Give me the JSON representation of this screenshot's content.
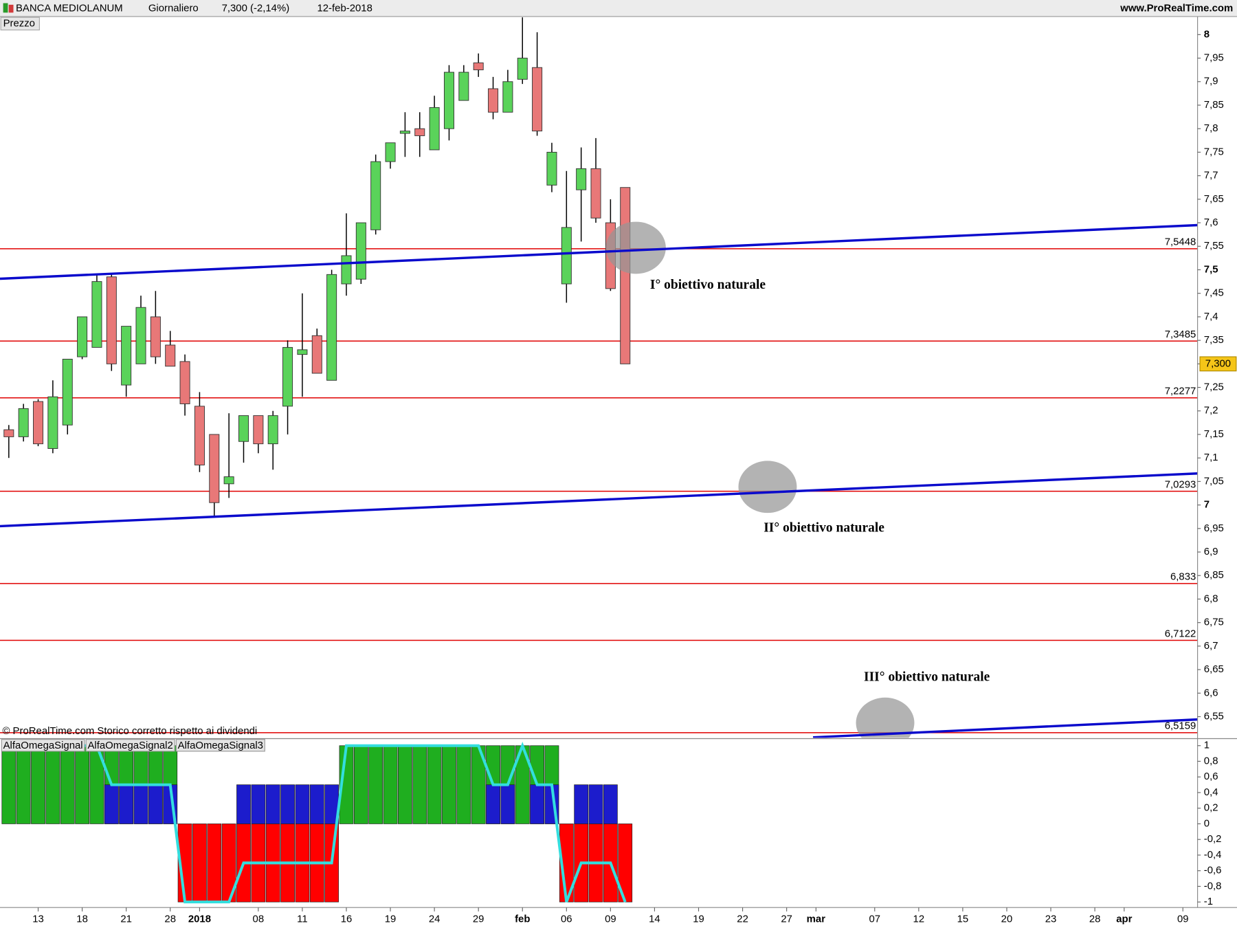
{
  "header": {
    "title": "BANCA MEDIOLANUM",
    "period": "Giornaliero",
    "quote": "7,300 (-2,14%)",
    "date": "12-feb-2018",
    "site": "www.ProRealTime.com",
    "copyright": "© ProRealTime.com  Storico corretto rispetto ai dividendi"
  },
  "chart_data": [
    {
      "type": "candlestick",
      "label": "Prezzo",
      "open": [
        7.16,
        7.145,
        7.22,
        7.12,
        7.17,
        7.315,
        7.335,
        7.485,
        7.255,
        7.3,
        7.4,
        7.34,
        7.305,
        7.21,
        7.15,
        7.045,
        7.135,
        7.19,
        7.13,
        7.21,
        7.32,
        7.36,
        7.265,
        7.47,
        7.48,
        7.585,
        7.73,
        7.79,
        7.8,
        7.755,
        7.8,
        7.86,
        7.94,
        7.885,
        7.835,
        7.905,
        7.93,
        7.68,
        7.47,
        7.67,
        7.715,
        7.6,
        7.675
      ],
      "high": [
        7.17,
        7.215,
        7.225,
        7.265,
        7.31,
        7.4,
        7.49,
        7.49,
        7.38,
        7.445,
        7.455,
        7.37,
        7.32,
        7.24,
        7.15,
        7.195,
        7.19,
        7.19,
        7.2,
        7.35,
        7.45,
        7.375,
        7.5,
        7.62,
        7.6,
        7.745,
        7.77,
        7.835,
        7.835,
        7.87,
        7.935,
        7.935,
        7.96,
        7.91,
        7.925,
        8.04,
        8.005,
        7.77,
        7.71,
        7.76,
        7.78,
        7.65,
        7.675
      ],
      "low": [
        7.1,
        7.135,
        7.125,
        7.11,
        7.15,
        7.31,
        7.335,
        7.285,
        7.23,
        7.3,
        7.3,
        7.295,
        7.19,
        7.07,
        6.975,
        7.015,
        7.09,
        7.11,
        7.075,
        7.15,
        7.23,
        7.28,
        7.265,
        7.445,
        7.47,
        7.575,
        7.715,
        7.74,
        7.74,
        7.755,
        7.775,
        7.86,
        7.91,
        7.82,
        7.835,
        7.895,
        7.785,
        7.665,
        7.43,
        7.56,
        7.6,
        7.455,
        7.3
      ],
      "close": [
        7.145,
        7.205,
        7.13,
        7.23,
        7.31,
        7.4,
        7.475,
        7.3,
        7.38,
        7.42,
        7.315,
        7.295,
        7.215,
        7.085,
        7.005,
        7.06,
        7.19,
        7.13,
        7.19,
        7.335,
        7.33,
        7.28,
        7.49,
        7.53,
        7.6,
        7.73,
        7.77,
        7.795,
        7.785,
        7.845,
        7.92,
        7.92,
        7.925,
        7.835,
        7.9,
        7.95,
        7.795,
        7.75,
        7.59,
        7.715,
        7.61,
        7.46,
        7.3
      ],
      "up_color": "#5ad35a",
      "down_color": "#e87878",
      "xlim": [
        -0.6,
        81
      ],
      "ylim": [
        6.505,
        8.04
      ],
      "yticks": [
        {
          "value": 6.55,
          "label": "6,55"
        },
        {
          "value": 6.6,
          "label": "6,6"
        },
        {
          "value": 6.65,
          "label": "6,65"
        },
        {
          "value": 6.7,
          "label": "6,7"
        },
        {
          "value": 6.75,
          "label": "6,75"
        },
        {
          "value": 6.8,
          "label": "6,8"
        },
        {
          "value": 6.85,
          "label": "6,85"
        },
        {
          "value": 6.9,
          "label": "6,9"
        },
        {
          "value": 6.95,
          "label": "6,95"
        },
        7,
        {
          "value": 7.05,
          "label": "7,05"
        },
        {
          "value": 7.1,
          "label": "7,1"
        },
        {
          "value": 7.15,
          "label": "7,15"
        },
        {
          "value": 7.2,
          "label": "7,2"
        },
        {
          "value": 7.25,
          "label": "7,25"
        },
        {
          "value": 7.3,
          "label": "7,3"
        },
        {
          "value": 7.35,
          "label": "7,35"
        },
        {
          "value": 7.4,
          "label": "7,4"
        },
        {
          "value": 7.45,
          "label": "7,45"
        },
        {
          "value": 7.5,
          "label": "7,5"
        },
        {
          "value": 7.55,
          "label": "7,55"
        },
        {
          "value": 7.6,
          "label": "7,6"
        },
        {
          "value": 7.65,
          "label": "7,65"
        },
        {
          "value": 7.7,
          "label": "7,7"
        },
        {
          "value": 7.75,
          "label": "7,75"
        },
        {
          "value": 7.8,
          "label": "7,8"
        },
        {
          "value": 7.85,
          "label": "7,85"
        },
        {
          "value": 7.9,
          "label": "7,9"
        },
        {
          "value": 7.95,
          "label": "7,95"
        },
        8
      ],
      "hlines": {
        "color": "#e00000",
        "levels": [
          {
            "value": 7.5448,
            "label": "7,5448"
          },
          {
            "value": 7.3485,
            "label": "7,3485"
          },
          {
            "value": 7.2277,
            "label": "7,2277"
          },
          {
            "value": 7.0293,
            "label": "7,0293"
          },
          {
            "value": 6.833,
            "label": "6,833"
          },
          {
            "value": 6.7122,
            "label": "6,7122"
          },
          {
            "value": 6.5159,
            "label": "6,5159"
          }
        ]
      },
      "trendlines": {
        "color": "#0a0acc",
        "lines": [
          [
            [
              -0.6,
              7.481
            ],
            [
              81,
              7.595
            ]
          ],
          [
            [
              -0.6,
              6.955
            ],
            [
              81,
              7.067
            ]
          ],
          [
            [
              54.8,
              6.506
            ],
            [
              81,
              6.544
            ]
          ]
        ]
      },
      "annotations": [
        "I° obiettivo naturale",
        "II° obiettivo naturale",
        "III° obiettivo naturale"
      ],
      "last_price": {
        "value": 7.3,
        "label": "7,300"
      }
    },
    {
      "type": "signal",
      "xlim": [
        -0.6,
        81
      ],
      "ylim": [
        -1.05,
        1.08
      ],
      "yticks": [
        1,
        {
          "value": 0.8,
          "label": "0,8"
        },
        {
          "value": 0.6,
          "label": "0,6"
        },
        {
          "value": 0.4,
          "label": "0,4"
        },
        {
          "value": 0.2,
          "label": "0,2"
        },
        0,
        {
          "value": -0.2,
          "label": "-0,2"
        },
        {
          "value": -0.4,
          "label": "-0,4"
        },
        {
          "value": -0.6,
          "label": "-0,6"
        },
        {
          "value": -0.8,
          "label": "-0,8"
        },
        -1
      ],
      "xticks": [
        {
          "value": 2,
          "label": "13"
        },
        {
          "value": 5,
          "label": "18"
        },
        {
          "value": 8,
          "label": "21"
        },
        {
          "value": 11,
          "label": "28"
        },
        {
          "value": 13,
          "label": "2018"
        },
        {
          "value": 17,
          "label": "08"
        },
        {
          "value": 20,
          "label": "11"
        },
        {
          "value": 23,
          "label": "16"
        },
        {
          "value": 26,
          "label": "19"
        },
        {
          "value": 29,
          "label": "24"
        },
        {
          "value": 32,
          "label": "29"
        },
        {
          "value": 35,
          "label": "feb"
        },
        {
          "value": 38,
          "label": "06"
        },
        {
          "value": 41,
          "label": "09"
        },
        {
          "value": 44,
          "label": "14"
        },
        {
          "value": 47,
          "label": "19"
        },
        {
          "value": 50,
          "label": "22"
        },
        {
          "value": 53,
          "label": "27"
        },
        {
          "value": 55,
          "label": "mar"
        },
        {
          "value": 59,
          "label": "07"
        },
        {
          "value": 62,
          "label": "12"
        },
        {
          "value": 65,
          "label": "15"
        },
        {
          "value": 68,
          "label": "20"
        },
        {
          "value": 71,
          "label": "23"
        },
        {
          "value": 74,
          "label": "28"
        },
        {
          "value": 76,
          "label": "apr"
        },
        {
          "value": 80,
          "label": "09"
        }
      ],
      "series": [
        {
          "name": "AlfaOmegaSignal",
          "style": "bars",
          "color": "#ff0000",
          "positive_color": "#1fae1f",
          "values": [
            1,
            1,
            1,
            1,
            1,
            1,
            1,
            1,
            1,
            1,
            1,
            1,
            -1,
            -1,
            -1,
            -1,
            -1,
            -1,
            -1,
            -1,
            -1,
            -1,
            -1,
            1,
            1,
            1,
            1,
            1,
            1,
            1,
            1,
            1,
            1,
            1,
            1,
            1,
            1,
            1,
            -1,
            -1,
            -1,
            -1,
            -1
          ]
        },
        {
          "name": "AlfaOmegaSignal2",
          "style": "bars",
          "color": "#1c1ccc",
          "values": [
            null,
            null,
            null,
            null,
            null,
            null,
            null,
            0.5,
            0.5,
            0.5,
            0.5,
            0.5,
            null,
            null,
            null,
            null,
            0.5,
            0.5,
            0.5,
            0.5,
            0.5,
            0.5,
            0.5,
            null,
            null,
            null,
            null,
            null,
            null,
            null,
            null,
            null,
            null,
            0.5,
            0.5,
            null,
            0.5,
            0.5,
            null,
            0.5,
            0.5,
            0.5,
            null
          ]
        },
        {
          "name": "AlfaOmegaSignal3",
          "style": "line",
          "color": "#33dede",
          "values": [
            1,
            1,
            1,
            1,
            1,
            1,
            1,
            0.5,
            0.5,
            0.5,
            0.5,
            0.5,
            -1,
            -1,
            -1,
            -1,
            -0.5,
            -0.5,
            -0.5,
            -0.5,
            -0.5,
            -0.5,
            -0.5,
            1,
            1,
            1,
            1,
            1,
            1,
            1,
            1,
            1,
            1,
            0.5,
            0.5,
            1,
            0.5,
            0.5,
            -1,
            -0.5,
            -0.5,
            -0.5,
            -1
          ]
        }
      ]
    }
  ]
}
